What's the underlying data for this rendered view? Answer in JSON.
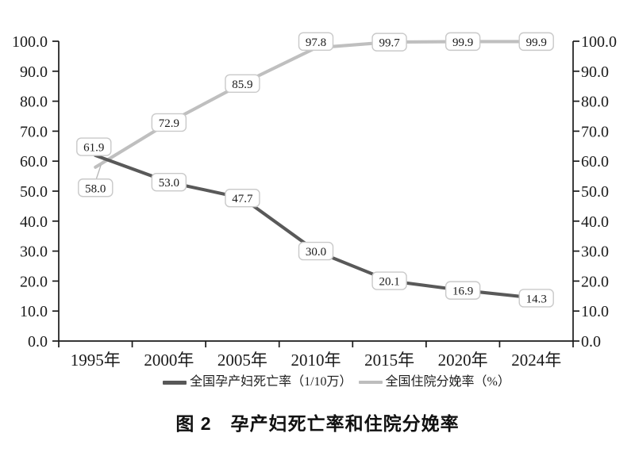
{
  "chart_data": {
    "type": "line",
    "title": "图 2　孕产妇死亡率和住院分娩率",
    "categories": [
      "1995年",
      "2000年",
      "2005年",
      "2010年",
      "2015年",
      "2020年",
      "2024年"
    ],
    "series": [
      {
        "name": "全国孕产妇死亡率（1/10万）",
        "values": [
          61.9,
          53.0,
          47.7,
          30.0,
          20.1,
          16.9,
          14.3
        ],
        "color": "#595959"
      },
      {
        "name": "全国住院分娩率（%）",
        "values": [
          58.0,
          72.9,
          85.9,
          97.8,
          99.7,
          99.9,
          99.9
        ],
        "color": "#bfbfbf"
      }
    ],
    "ylim": [
      0,
      100
    ],
    "yticks": [
      "0.0",
      "10.0",
      "20.0",
      "30.0",
      "40.0",
      "50.0",
      "60.0",
      "70.0",
      "80.0",
      "90.0",
      "100.0"
    ],
    "y_axis_sides": "left and right (mirrored)",
    "grid": "off",
    "data_labels": "boxed callouts, one decimal",
    "legend_position": "bottom",
    "colors": {
      "axis": "#1a1a1a",
      "callout_border": "#c9c9c9",
      "callout_fill": "#ffffff",
      "leader_line": "#b5b5b5",
      "background": "#ffffff"
    }
  }
}
